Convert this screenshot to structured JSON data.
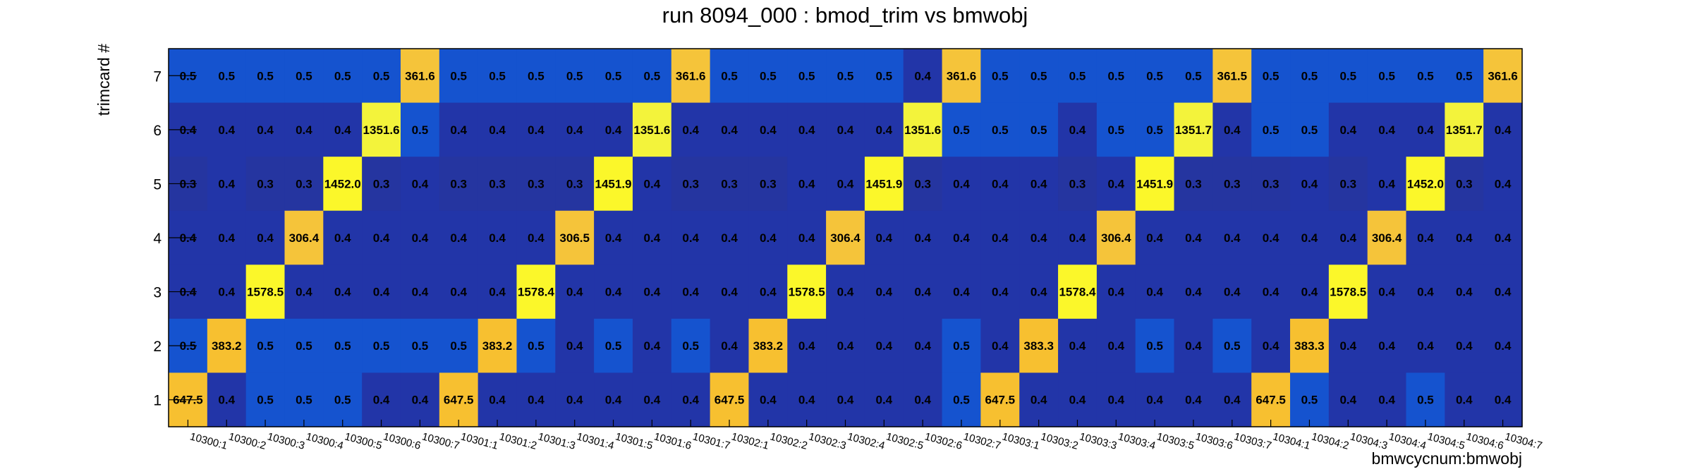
{
  "chart_data": {
    "type": "heatmap",
    "title": "run 8094_000 : bmod_trim vs bmwobj",
    "xlabel": "bmwcycnum:bmwobj",
    "ylabel": "trimcard #",
    "x_categories": [
      "10300:1",
      "10300:2",
      "10300:3",
      "10300:4",
      "10300:5",
      "10300:6",
      "10300:7",
      "10301:1",
      "10301:2",
      "10301:3",
      "10301:4",
      "10301:5",
      "10301:6",
      "10301:7",
      "10302:1",
      "10302:2",
      "10302:3",
      "10302:4",
      "10302:5",
      "10302:6",
      "10302:7",
      "10303:1",
      "10303:2",
      "10303:3",
      "10303:4",
      "10303:5",
      "10303:6",
      "10303:7",
      "10304:1",
      "10304:2",
      "10304:3",
      "10304:4",
      "10304:5",
      "10304:6",
      "10304:7"
    ],
    "y_categories": [
      "1",
      "2",
      "3",
      "4",
      "5",
      "6",
      "7"
    ],
    "rows": [
      {
        "y": "7",
        "values": [
          "0.5",
          "0.5",
          "0.5",
          "0.5",
          "0.5",
          "0.5",
          "361.6",
          "0.5",
          "0.5",
          "0.5",
          "0.5",
          "0.5",
          "0.5",
          "361.6",
          "0.5",
          "0.5",
          "0.5",
          "0.5",
          "0.5",
          "0.4",
          "361.6",
          "0.5",
          "0.5",
          "0.5",
          "0.5",
          "0.5",
          "0.5",
          "361.5",
          "0.5",
          "0.5",
          "0.5",
          "0.5",
          "0.5",
          "0.5",
          "361.6"
        ]
      },
      {
        "y": "6",
        "values": [
          "0.4",
          "0.4",
          "0.4",
          "0.4",
          "0.4",
          "1351.6",
          "0.5",
          "0.4",
          "0.4",
          "0.4",
          "0.4",
          "0.4",
          "1351.6",
          "0.4",
          "0.4",
          "0.4",
          "0.4",
          "0.4",
          "0.4",
          "1351.6",
          "0.5",
          "0.5",
          "0.5",
          "0.4",
          "0.5",
          "0.5",
          "1351.7",
          "0.4",
          "0.5",
          "0.5",
          "0.4",
          "0.4",
          "0.4",
          "1351.7",
          "0.4"
        ]
      },
      {
        "y": "5",
        "values": [
          "0.3",
          "0.4",
          "0.3",
          "0.3",
          "1452.0",
          "0.3",
          "0.4",
          "0.3",
          "0.3",
          "0.3",
          "0.3",
          "1451.9",
          "0.4",
          "0.3",
          "0.3",
          "0.3",
          "0.4",
          "0.4",
          "1451.9",
          "0.3",
          "0.4",
          "0.4",
          "0.4",
          "0.3",
          "0.4",
          "1451.9",
          "0.3",
          "0.3",
          "0.3",
          "0.4",
          "0.3",
          "0.4",
          "1452.0",
          "0.3",
          "0.4"
        ]
      },
      {
        "y": "4",
        "values": [
          "0.4",
          "0.4",
          "0.4",
          "306.4",
          "0.4",
          "0.4",
          "0.4",
          "0.4",
          "0.4",
          "0.4",
          "306.5",
          "0.4",
          "0.4",
          "0.4",
          "0.4",
          "0.4",
          "0.4",
          "306.4",
          "0.4",
          "0.4",
          "0.4",
          "0.4",
          "0.4",
          "0.4",
          "306.4",
          "0.4",
          "0.4",
          "0.4",
          "0.4",
          "0.4",
          "0.4",
          "306.4",
          "0.4",
          "0.4",
          "0.4"
        ]
      },
      {
        "y": "3",
        "values": [
          "0.4",
          "0.4",
          "1578.5",
          "0.4",
          "0.4",
          "0.4",
          "0.4",
          "0.4",
          "0.4",
          "1578.4",
          "0.4",
          "0.4",
          "0.4",
          "0.4",
          "0.4",
          "0.4",
          "1578.5",
          "0.4",
          "0.4",
          "0.4",
          "0.4",
          "0.4",
          "0.4",
          "1578.4",
          "0.4",
          "0.4",
          "0.4",
          "0.4",
          "0.4",
          "0.4",
          "1578.5",
          "0.4",
          "0.4",
          "0.4",
          "0.4"
        ]
      },
      {
        "y": "2",
        "values": [
          "0.5",
          "383.2",
          "0.5",
          "0.5",
          "0.5",
          "0.5",
          "0.5",
          "0.5",
          "383.2",
          "0.5",
          "0.4",
          "0.5",
          "0.4",
          "0.5",
          "0.4",
          "383.2",
          "0.4",
          "0.4",
          "0.4",
          "0.4",
          "0.5",
          "0.4",
          "383.3",
          "0.4",
          "0.4",
          "0.5",
          "0.4",
          "0.5",
          "0.4",
          "383.3",
          "0.4",
          "0.4",
          "0.4",
          "0.4",
          "0.4"
        ]
      },
      {
        "y": "1",
        "values": [
          "647.5",
          "0.4",
          "0.5",
          "0.5",
          "0.5",
          "0.4",
          "0.4",
          "647.5",
          "0.4",
          "0.4",
          "0.4",
          "0.4",
          "0.4",
          "0.4",
          "647.5",
          "0.4",
          "0.4",
          "0.4",
          "0.4",
          "0.4",
          "0.5",
          "647.5",
          "0.4",
          "0.4",
          "0.4",
          "0.4",
          "0.4",
          "0.4",
          "647.5",
          "0.5",
          "0.4",
          "0.4",
          "0.5",
          "0.4",
          "0.4"
        ]
      }
    ],
    "color_scale": {
      "0.3": "#2535a0",
      "0.4": "#2235a8",
      "0.5": "#1553cf",
      "306": "#f5c43a",
      "362": "#f5c43a",
      "383": "#f7c030",
      "648": "#f7c030",
      "1350": "#f3f33b",
      "1450": "#fbf72a",
      "1578": "#fbf72a"
    }
  }
}
